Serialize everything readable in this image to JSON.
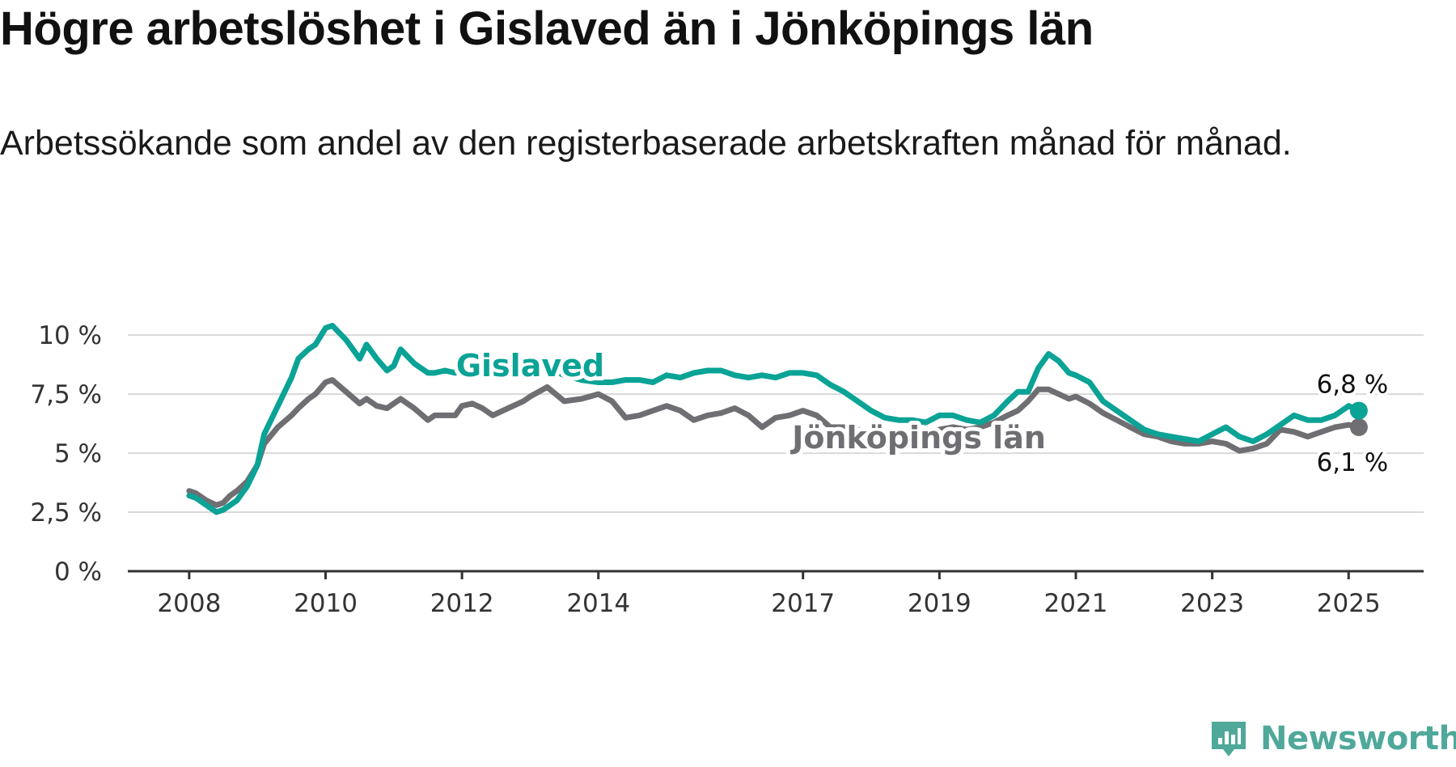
{
  "title": "Högre arbetslöshet i Gislaved än i Jönköpings län",
  "subtitle": "Arbetssökande som andel av den registerbaserade arbetskraften månad för månad.",
  "brand": {
    "name": "Newsworthy",
    "logo_icon": "bar-chart-badge-icon",
    "color": "#4fa89a"
  },
  "chart_data": {
    "type": "line",
    "y_ticks": [
      0,
      2.5,
      5,
      7.5,
      10
    ],
    "y_tick_labels": [
      "0 %",
      "2,5 %",
      "5 %",
      "7,5 %",
      "10 %"
    ],
    "ylim": [
      0,
      11
    ],
    "x_ticks": [
      2008,
      2010,
      2012,
      2014,
      2017,
      2019,
      2021,
      2023,
      2025
    ],
    "xlim": [
      2007.1,
      2026.1
    ],
    "grid": "horizontal",
    "series": [
      {
        "name": "Gislaved",
        "color": "#0aa396",
        "end_label": "6,8 %",
        "x": [
          2008.0,
          2008.1,
          2008.25,
          2008.4,
          2008.5,
          2008.6,
          2008.7,
          2008.85,
          2009.0,
          2009.1,
          2009.3,
          2009.5,
          2009.6,
          2009.75,
          2009.85,
          2010.0,
          2010.1,
          2010.3,
          2010.5,
          2010.6,
          2010.75,
          2010.9,
          2011.0,
          2011.1,
          2011.3,
          2011.5,
          2011.6,
          2011.75,
          2011.9,
          2012.0,
          2012.15,
          2012.3,
          2012.45,
          2012.6,
          2012.75,
          2012.9,
          2013.0,
          2013.25,
          2013.5,
          2013.75,
          2014.0,
          2014.2,
          2014.4,
          2014.6,
          2014.8,
          2015.0,
          2015.2,
          2015.4,
          2015.6,
          2015.8,
          2016.0,
          2016.2,
          2016.4,
          2016.6,
          2016.8,
          2017.0,
          2017.2,
          2017.4,
          2017.6,
          2017.8,
          2018.0,
          2018.2,
          2018.4,
          2018.6,
          2018.8,
          2019.0,
          2019.2,
          2019.4,
          2019.6,
          2019.8,
          2020.0,
          2020.15,
          2020.3,
          2020.45,
          2020.6,
          2020.75,
          2020.9,
          2021.0,
          2021.2,
          2021.4,
          2021.6,
          2021.8,
          2022.0,
          2022.2,
          2022.4,
          2022.6,
          2022.8,
          2023.0,
          2023.2,
          2023.4,
          2023.6,
          2023.8,
          2024.0,
          2024.2,
          2024.4,
          2024.6,
          2024.8,
          2025.0,
          2025.15
        ],
        "y": [
          3.2,
          3.1,
          2.8,
          2.5,
          2.6,
          2.8,
          3.0,
          3.6,
          4.5,
          5.8,
          7.0,
          8.2,
          9.0,
          9.4,
          9.6,
          10.3,
          10.4,
          9.8,
          9.0,
          9.6,
          9.0,
          8.5,
          8.7,
          9.4,
          8.8,
          8.4,
          8.4,
          8.5,
          8.4,
          8.9,
          8.8,
          8.8,
          8.6,
          8.7,
          8.7,
          8.8,
          8.8,
          8.6,
          8.3,
          8.1,
          8.0,
          8.0,
          8.1,
          8.1,
          8.0,
          8.3,
          8.2,
          8.4,
          8.5,
          8.5,
          8.3,
          8.2,
          8.3,
          8.2,
          8.4,
          8.4,
          8.3,
          7.9,
          7.6,
          7.2,
          6.8,
          6.5,
          6.4,
          6.4,
          6.3,
          6.6,
          6.6,
          6.4,
          6.3,
          6.6,
          7.2,
          7.6,
          7.6,
          8.6,
          9.2,
          8.9,
          8.4,
          8.3,
          8.0,
          7.2,
          6.8,
          6.4,
          6.0,
          5.8,
          5.7,
          5.6,
          5.5,
          5.8,
          6.1,
          5.7,
          5.5,
          5.8,
          6.2,
          6.6,
          6.4,
          6.4,
          6.6,
          7.0,
          6.8
        ]
      },
      {
        "name": "Jönköpings län",
        "color": "#6e6e73",
        "end_label": "6,1 %",
        "x": [
          2008.0,
          2008.1,
          2008.25,
          2008.4,
          2008.5,
          2008.6,
          2008.7,
          2008.85,
          2009.0,
          2009.1,
          2009.3,
          2009.5,
          2009.6,
          2009.75,
          2009.85,
          2010.0,
          2010.1,
          2010.3,
          2010.5,
          2010.6,
          2010.75,
          2010.9,
          2011.0,
          2011.1,
          2011.3,
          2011.5,
          2011.6,
          2011.75,
          2011.9,
          2012.0,
          2012.15,
          2012.3,
          2012.45,
          2012.6,
          2012.75,
          2012.9,
          2013.0,
          2013.25,
          2013.5,
          2013.75,
          2014.0,
          2014.2,
          2014.4,
          2014.6,
          2014.8,
          2015.0,
          2015.2,
          2015.4,
          2015.6,
          2015.8,
          2016.0,
          2016.2,
          2016.4,
          2016.6,
          2016.8,
          2017.0,
          2017.2,
          2017.4,
          2017.6,
          2017.8,
          2018.0,
          2018.2,
          2018.4,
          2018.6,
          2018.8,
          2019.0,
          2019.2,
          2019.4,
          2019.6,
          2019.8,
          2020.0,
          2020.15,
          2020.3,
          2020.45,
          2020.6,
          2020.75,
          2020.9,
          2021.0,
          2021.2,
          2021.4,
          2021.6,
          2021.8,
          2022.0,
          2022.2,
          2022.4,
          2022.6,
          2022.8,
          2023.0,
          2023.2,
          2023.4,
          2023.6,
          2023.8,
          2024.0,
          2024.2,
          2024.4,
          2024.6,
          2024.8,
          2025.0,
          2025.15
        ],
        "y": [
          3.4,
          3.3,
          3.0,
          2.8,
          2.9,
          3.2,
          3.4,
          3.8,
          4.5,
          5.4,
          6.1,
          6.6,
          6.9,
          7.3,
          7.5,
          8.0,
          8.1,
          7.6,
          7.1,
          7.3,
          7.0,
          6.9,
          7.1,
          7.3,
          6.9,
          6.4,
          6.6,
          6.6,
          6.6,
          7.0,
          7.1,
          6.9,
          6.6,
          6.8,
          7.0,
          7.2,
          7.4,
          7.8,
          7.2,
          7.3,
          7.5,
          7.2,
          6.5,
          6.6,
          6.8,
          7.0,
          6.8,
          6.4,
          6.6,
          6.7,
          6.9,
          6.6,
          6.1,
          6.5,
          6.6,
          6.8,
          6.6,
          6.1,
          6.1,
          6.0,
          5.9,
          5.8,
          5.8,
          5.7,
          5.8,
          6.0,
          6.1,
          6.0,
          6.1,
          6.3,
          6.6,
          6.8,
          7.2,
          7.7,
          7.7,
          7.5,
          7.3,
          7.4,
          7.1,
          6.7,
          6.4,
          6.1,
          5.8,
          5.7,
          5.5,
          5.4,
          5.4,
          5.5,
          5.4,
          5.1,
          5.2,
          5.4,
          6.0,
          5.9,
          5.7,
          5.9,
          6.1,
          6.2,
          6.1
        ]
      }
    ]
  }
}
